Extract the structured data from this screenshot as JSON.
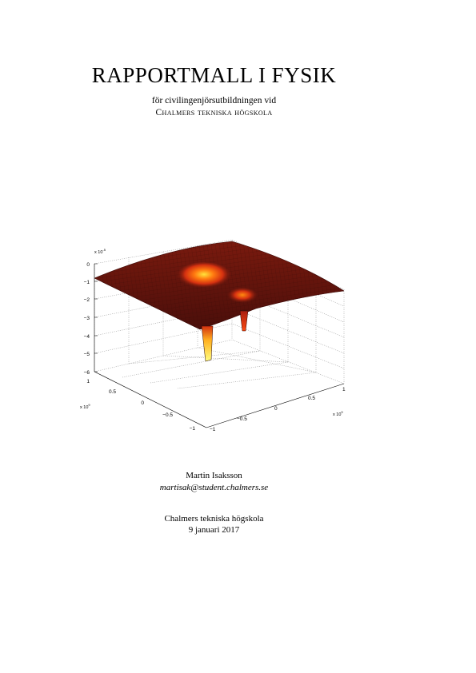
{
  "document": {
    "title": "RAPPORTMALL I FYSIK",
    "subtitle_line1": "för civilingenjörsutbildningen vid",
    "subtitle_line2": "Chalmers tekniska högskola",
    "author": "Martin Isaksson",
    "email": "martisak@student.chalmers.se",
    "institution": "Chalmers tekniska högskola",
    "date": "9 januari 2017"
  },
  "chart_data": {
    "type": "surface",
    "z_multiplier": "x 10",
    "z_multiplier_exp": "-5",
    "x_multiplier": "x 10",
    "x_multiplier_exp": "9",
    "y_multiplier": "x 10",
    "y_multiplier_exp": "9",
    "z_ticks": [
      "0",
      "−1",
      "−2",
      "−3",
      "−4",
      "−5",
      "−6"
    ],
    "x_ticks": [
      "1",
      "0.5",
      "0",
      "−0.5",
      "−1"
    ],
    "y_ticks": [
      "−1",
      "−0.5",
      "0",
      "0.5",
      "1"
    ],
    "xlim": [
      -1,
      1
    ],
    "ylim": [
      -1,
      1
    ],
    "zlim": [
      -6,
      0
    ],
    "grid": true,
    "colormap": "hot",
    "wells": [
      {
        "x": 0.0,
        "y": 0.0,
        "min_z": -5.1
      },
      {
        "x": 0.6,
        "y": -0.3,
        "min_z": -2.5
      }
    ]
  }
}
